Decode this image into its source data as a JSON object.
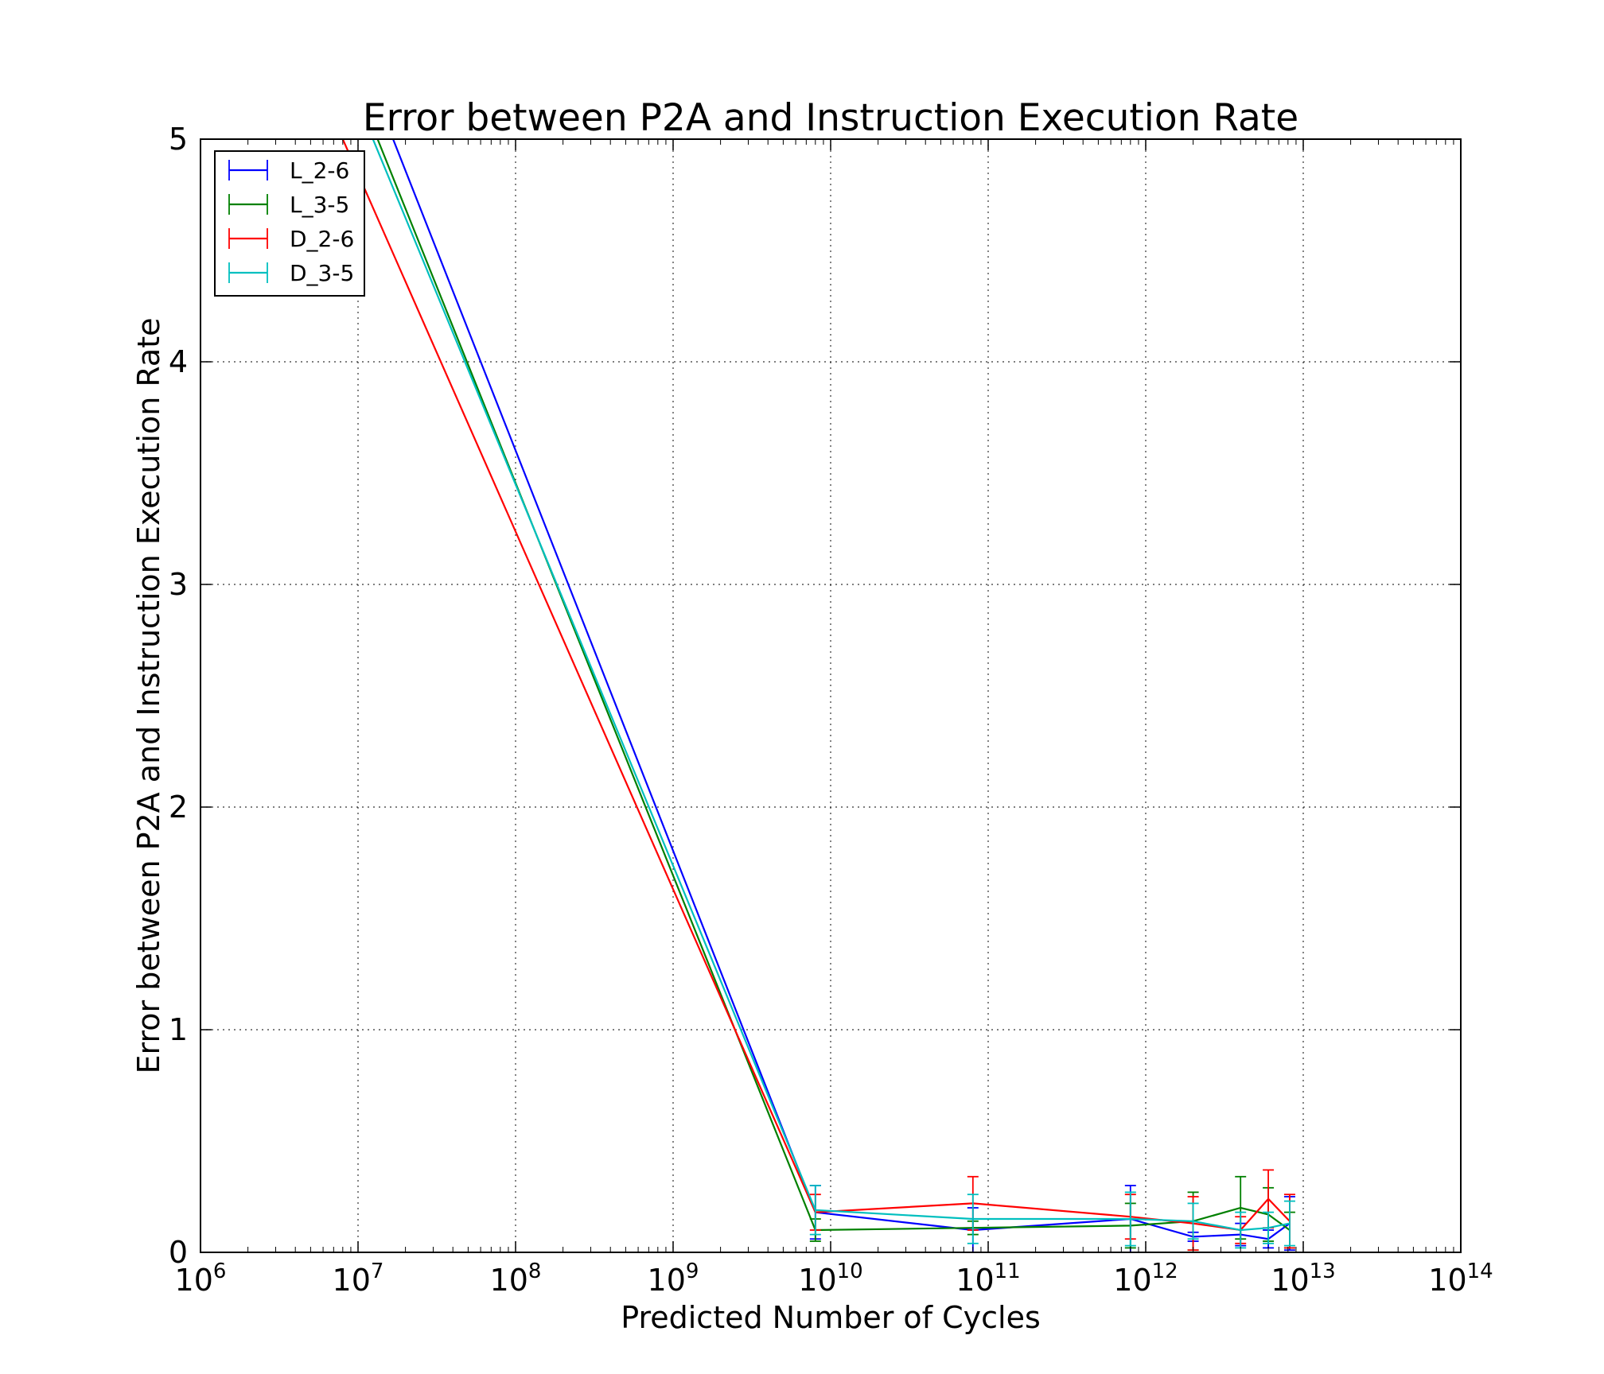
{
  "chart_data": {
    "type": "line",
    "title": "Error between P2A and Instruction Execution Rate",
    "xlabel": "Predicted Number of Cycles",
    "ylabel": "Error between P2A and Instruction Execution Rate",
    "xscale": "log",
    "xlim": [
      1000000,
      100000000000000
    ],
    "ylim": [
      0,
      5
    ],
    "x_ticks": [
      {
        "base": "10",
        "exp": "6",
        "value": 1000000
      },
      {
        "base": "10",
        "exp": "7",
        "value": 10000000
      },
      {
        "base": "10",
        "exp": "8",
        "value": 100000000
      },
      {
        "base": "10",
        "exp": "9",
        "value": 1000000000
      },
      {
        "base": "10",
        "exp": "10",
        "value": 10000000000
      },
      {
        "base": "10",
        "exp": "11",
        "value": 100000000000
      },
      {
        "base": "10",
        "exp": "12",
        "value": 1000000000000
      },
      {
        "base": "10",
        "exp": "13",
        "value": 10000000000000
      },
      {
        "base": "10",
        "exp": "14",
        "value": 100000000000000
      }
    ],
    "y_ticks": [
      "0",
      "1",
      "2",
      "3",
      "4",
      "5"
    ],
    "grid": true,
    "legend_position": "top-left",
    "series": [
      {
        "name": "L_2-6",
        "color": "#0000ff",
        "x": [
          10000000,
          8000000000,
          80000000000,
          800000000000,
          2000000000000,
          4000000000000,
          6000000000000,
          8200000000000
        ],
        "y": [
          5.4,
          0.18,
          0.1,
          0.15,
          0.07,
          0.08,
          0.06,
          0.13
        ],
        "yerr": [
          0.0,
          0.12,
          0.1,
          0.15,
          0.02,
          0.05,
          0.04,
          0.12
        ]
      },
      {
        "name": "L_3-5",
        "color": "#008000",
        "x": [
          9000000,
          8000000000,
          80000000000,
          800000000000,
          2000000000000,
          4000000000000,
          6000000000000,
          8200000000000
        ],
        "y": [
          5.3,
          0.1,
          0.11,
          0.12,
          0.14,
          0.2,
          0.17,
          0.1
        ],
        "yerr": [
          0.0,
          0.05,
          0.03,
          0.1,
          0.13,
          0.14,
          0.12,
          0.08
        ]
      },
      {
        "name": "D_2-6",
        "color": "#ff0000",
        "x": [
          8000000,
          8000000000,
          80000000000,
          800000000000,
          2000000000000,
          4000000000000,
          6000000000000,
          8200000000000
        ],
        "y": [
          5.0,
          0.18,
          0.22,
          0.16,
          0.13,
          0.1,
          0.24,
          0.14
        ],
        "yerr": [
          0.0,
          0.08,
          0.12,
          0.1,
          0.12,
          0.06,
          0.13,
          0.12
        ]
      },
      {
        "name": "D_3-5",
        "color": "#00bfbf",
        "x": [
          9500000,
          8000000000,
          80000000000,
          800000000000,
          2000000000000,
          4000000000000,
          6000000000000,
          8200000000000
        ],
        "y": [
          5.2,
          0.19,
          0.15,
          0.15,
          0.14,
          0.1,
          0.11,
          0.13
        ],
        "yerr": [
          0.0,
          0.11,
          0.11,
          0.12,
          0.08,
          0.08,
          0.07,
          0.1
        ]
      }
    ]
  }
}
